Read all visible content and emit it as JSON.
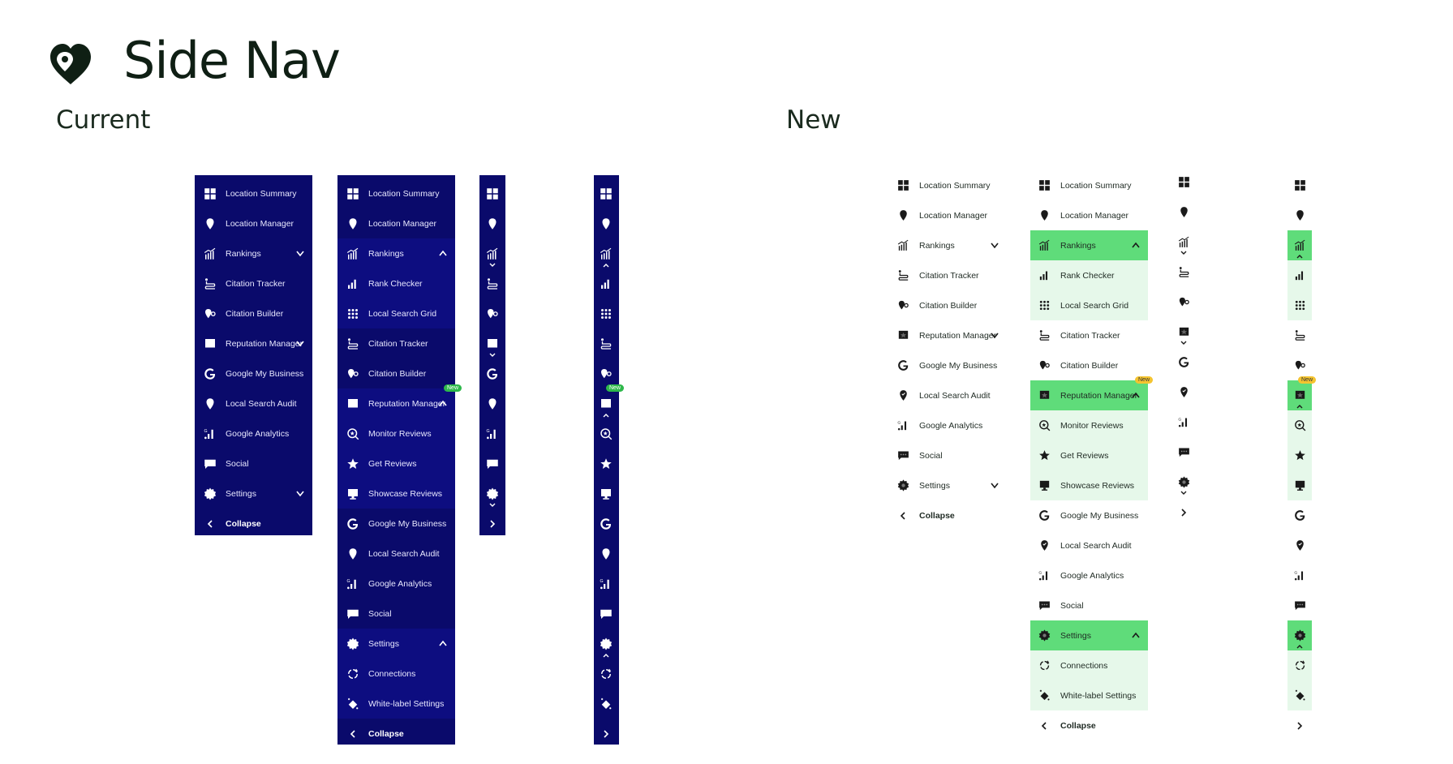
{
  "page": {
    "title": "Side Nav",
    "sections": {
      "current": "Current",
      "new": "New"
    }
  },
  "colors": {
    "dark_bg": "#0a0a6b",
    "dark_sub_bg": "#0d0d80",
    "active_green": "#5fdc7a",
    "sub_green": "#e6f8ea",
    "badge_green": "#2eb84b",
    "badge_yellow": "#f4c430"
  },
  "menu_collapsed": {
    "items": [
      {
        "icon": "grid-icon",
        "label": "Location Summary"
      },
      {
        "icon": "pin-icon",
        "label": "Location Manager"
      },
      {
        "icon": "rankings-icon",
        "label": "Rankings",
        "expandable": true
      },
      {
        "icon": "citation-tracker-icon",
        "label": "Citation Tracker"
      },
      {
        "icon": "citation-builder-icon",
        "label": "Citation Builder"
      },
      {
        "icon": "reputation-icon",
        "label": "Reputation Manager",
        "expandable": true
      },
      {
        "icon": "google-icon",
        "label": "Google My Business"
      },
      {
        "icon": "audit-icon",
        "label": "Local Search Audit"
      },
      {
        "icon": "analytics-icon",
        "label": "Google Analytics"
      },
      {
        "icon": "social-icon",
        "label": "Social"
      },
      {
        "icon": "gear-icon",
        "label": "Settings",
        "expandable": true
      }
    ],
    "collapse_label": "Collapse"
  },
  "menu_expanded": {
    "items": [
      {
        "icon": "grid-icon",
        "label": "Location Summary",
        "type": "item"
      },
      {
        "icon": "pin-icon",
        "label": "Location Manager",
        "type": "item"
      },
      {
        "icon": "rankings-icon",
        "label": "Rankings",
        "type": "parent"
      },
      {
        "icon": "rank-checker-icon",
        "label": "Rank Checker",
        "type": "child"
      },
      {
        "icon": "local-grid-icon",
        "label": "Local Search Grid",
        "type": "child"
      },
      {
        "icon": "citation-tracker-icon",
        "label": "Citation Tracker",
        "type": "item"
      },
      {
        "icon": "citation-builder-icon",
        "label": "Citation Builder",
        "type": "item"
      },
      {
        "icon": "reputation-icon",
        "label": "Reputation Manager",
        "type": "parent",
        "badge": "New"
      },
      {
        "icon": "monitor-reviews-icon",
        "label": "Monitor Reviews",
        "type": "child"
      },
      {
        "icon": "get-reviews-icon",
        "label": "Get Reviews",
        "type": "child"
      },
      {
        "icon": "showcase-icon",
        "label": "Showcase Reviews",
        "type": "child"
      },
      {
        "icon": "google-icon",
        "label": "Google My Business",
        "type": "item"
      },
      {
        "icon": "audit-icon",
        "label": "Local Search Audit",
        "type": "item"
      },
      {
        "icon": "analytics-icon",
        "label": "Google Analytics",
        "type": "item"
      },
      {
        "icon": "social-icon",
        "label": "Social",
        "type": "item"
      },
      {
        "icon": "gear-icon",
        "label": "Settings",
        "type": "parent"
      },
      {
        "icon": "connections-icon",
        "label": "Connections",
        "type": "child"
      },
      {
        "icon": "white-label-icon",
        "label": "White-label Settings",
        "type": "child"
      }
    ],
    "collapse_label": "Collapse"
  }
}
